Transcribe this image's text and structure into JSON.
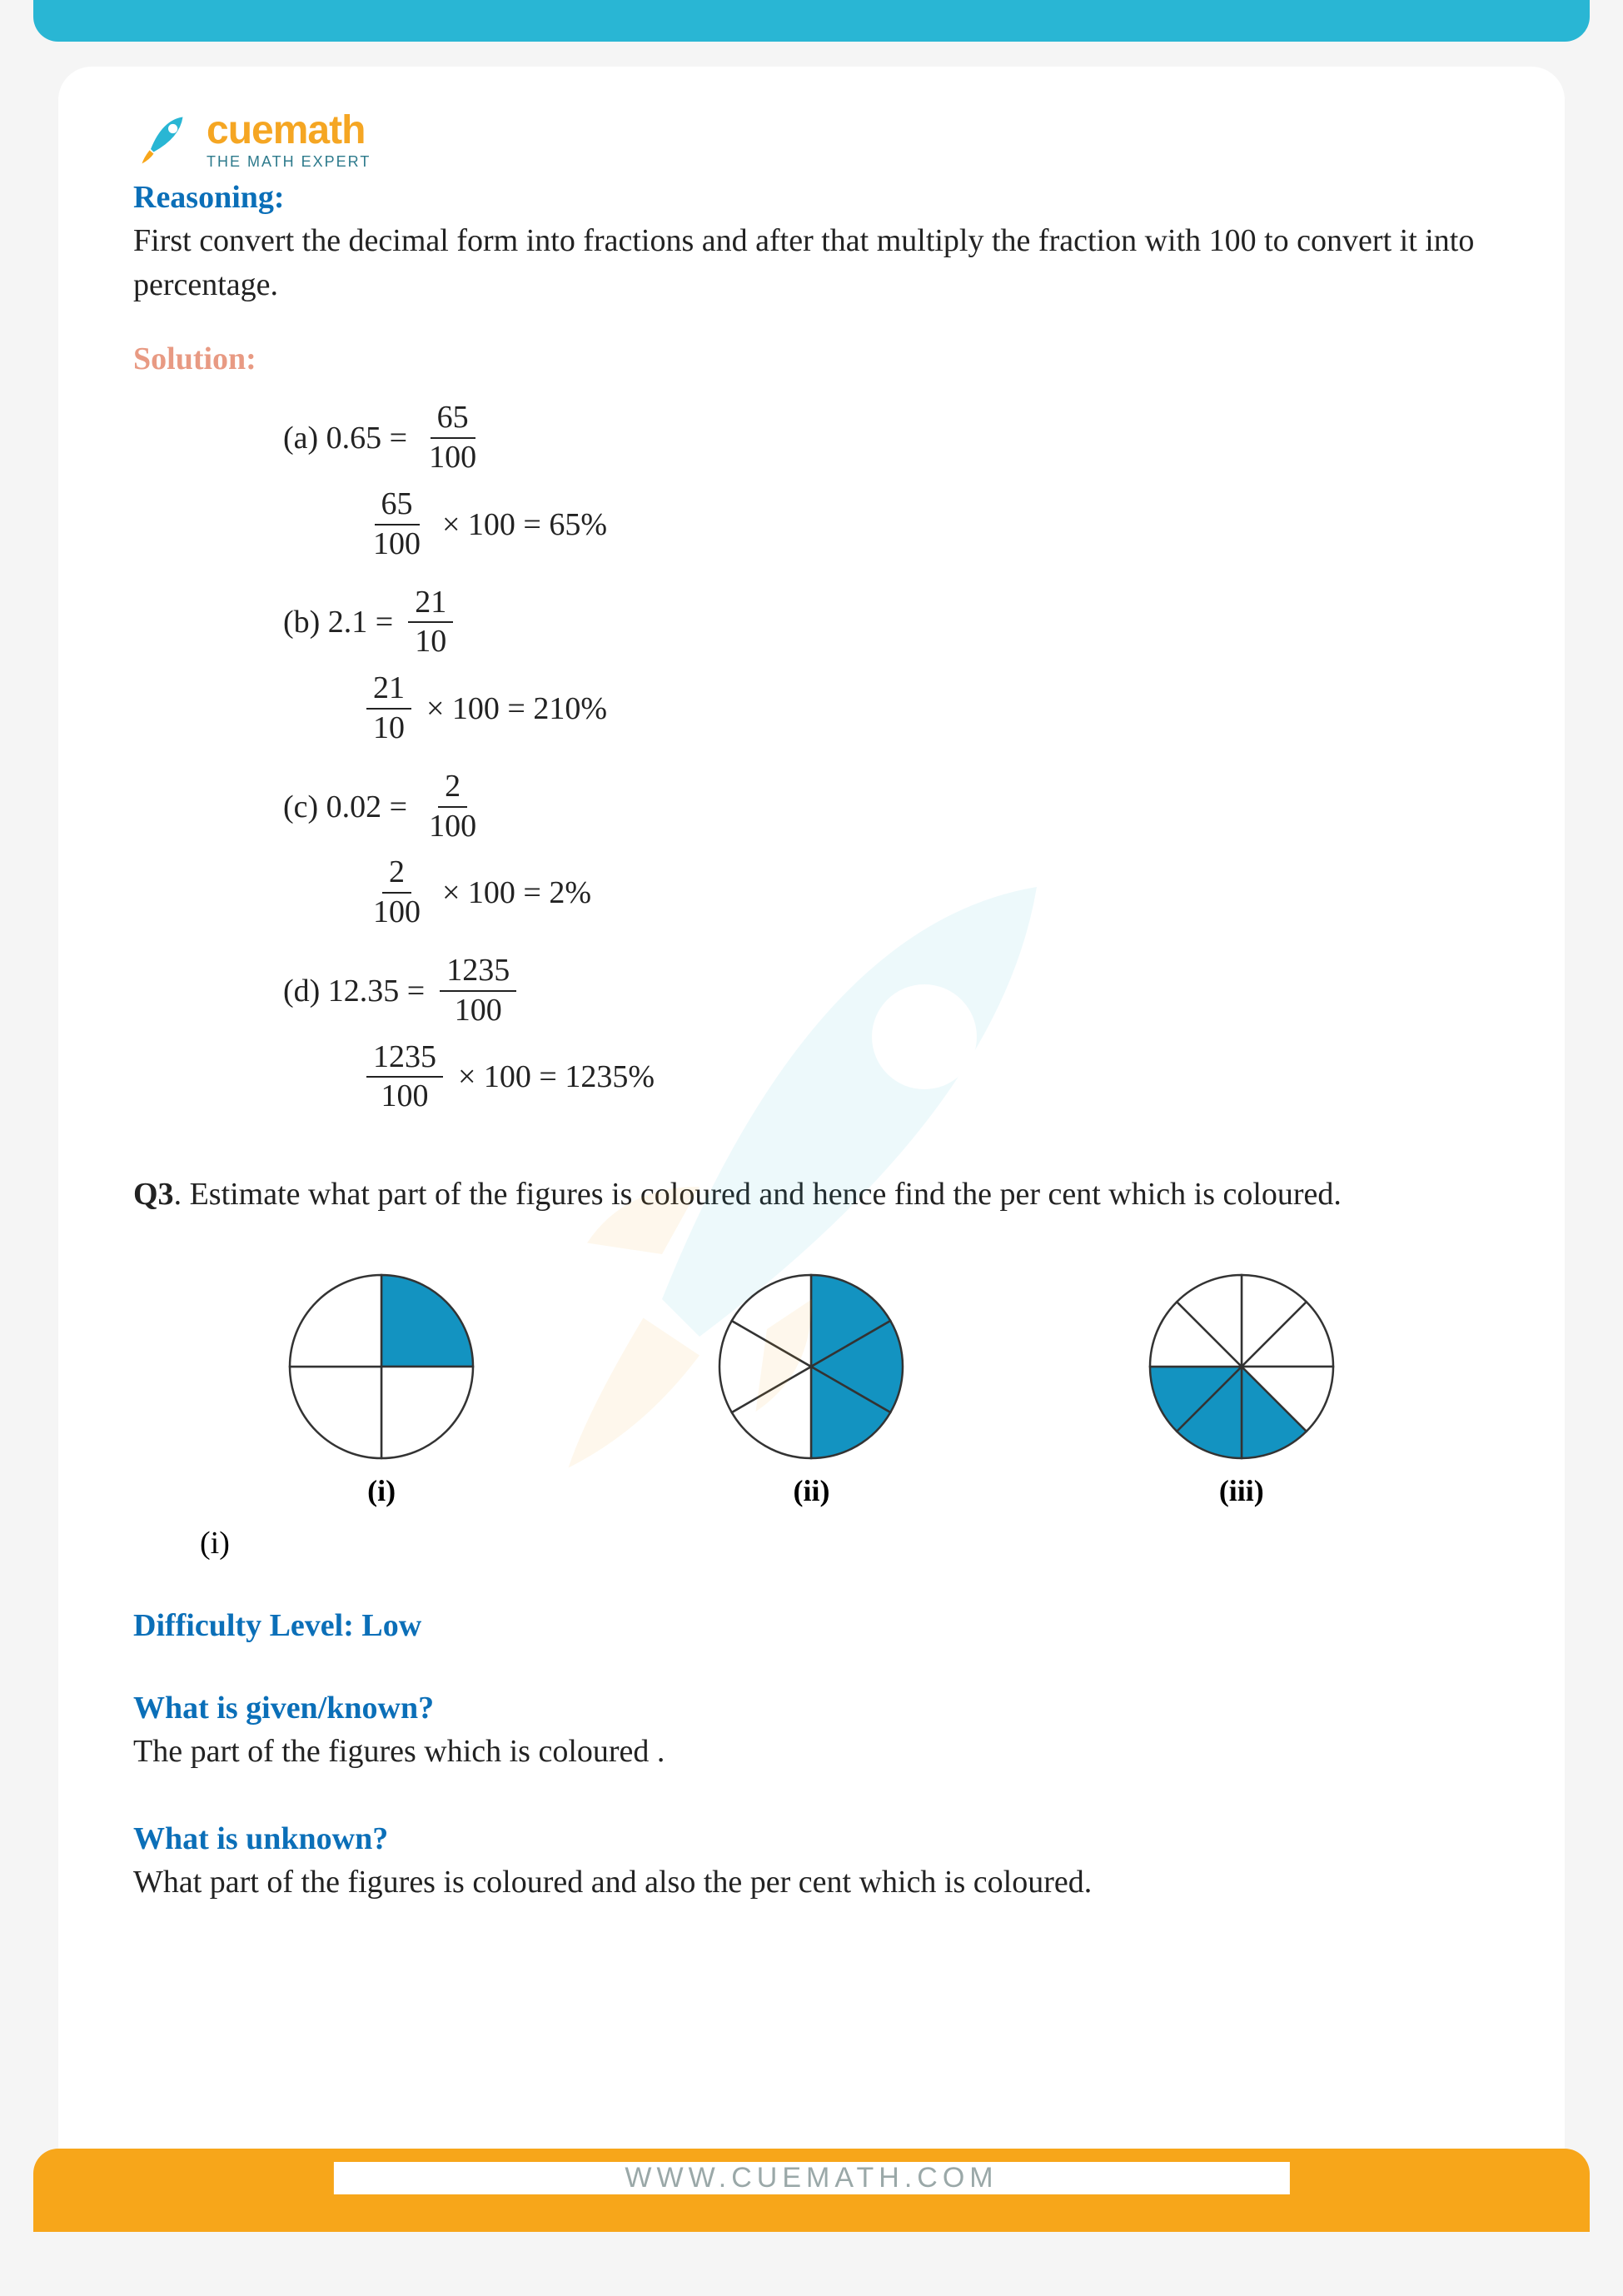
{
  "brand": {
    "name": "cuemath",
    "tagline": "THE MATH EXPERT",
    "colors": {
      "orange": "#f5a623",
      "teal": "#2d7a8c",
      "topbar": "#29b6d4",
      "footer": "#f7a61a"
    }
  },
  "reasoning": {
    "heading": "Reasoning:",
    "text": "First convert the decimal form into fractions and after that multiply the fraction with 100 to convert it into percentage."
  },
  "solution": {
    "heading": "Solution:",
    "items": [
      {
        "label": "(a)",
        "lhs": "0.65",
        "num": "65",
        "den": "100",
        "result": "65%"
      },
      {
        "label": "(b)",
        "lhs": "2.1",
        "num": "21",
        "den": "10",
        "result": "210%"
      },
      {
        "label": "(c)",
        "lhs": "0.02",
        "num": "2",
        "den": "100",
        "result": "2%"
      },
      {
        "label": "(d)",
        "lhs": "12.35",
        "num": "1235",
        "den": "100",
        "result": "1235%"
      }
    ]
  },
  "q3": {
    "number": "Q3",
    "text": ".  Estimate what part of the figures is coloured and hence find the per cent which is coloured.",
    "sub_i": "(i)",
    "figures": [
      {
        "label": "(i)",
        "slices": 4,
        "filled": [
          0
        ],
        "fill_color": "#1393c1",
        "stroke": "#333"
      },
      {
        "label": "(ii)",
        "slices": 6,
        "filled": [
          0,
          1,
          2
        ],
        "fill_color": "#1393c1",
        "stroke": "#333"
      },
      {
        "label": "(iii)",
        "slices": 8,
        "filled": [
          3,
          4,
          5
        ],
        "fill_color": "#1393c1",
        "stroke": "#333"
      }
    ]
  },
  "difficulty": {
    "label": "Difficulty Level: Low"
  },
  "given": {
    "heading": "What is given/known?",
    "text": "The part of the figures which   is coloured ."
  },
  "unknown": {
    "heading": "What is unknown?",
    "text": "What part of the figures is coloured and also the per cent which is coloured."
  },
  "footer": {
    "url": "WWW.CUEMATH.COM"
  }
}
